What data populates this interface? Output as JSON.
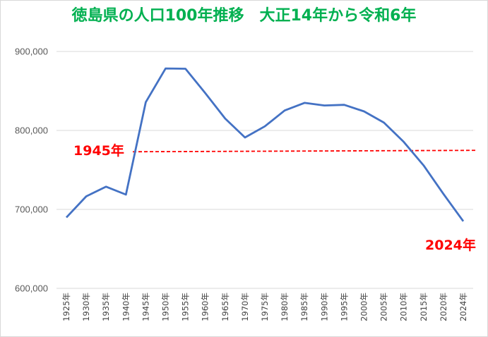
{
  "chart_data": {
    "type": "line",
    "title": "徳島県の人口100年推移　大正14年から令和6年",
    "title_color": "#00b050",
    "categories": [
      "1925年",
      "1930年",
      "1935年",
      "1940年",
      "1945年",
      "1950年",
      "1955年",
      "1960年",
      "1965年",
      "1970年",
      "1975年",
      "1980年",
      "1985年",
      "1990年",
      "1995年",
      "2000年",
      "2005年",
      "2010年",
      "2015年",
      "2020年",
      "2024年"
    ],
    "series": [
      {
        "color": "#4472c4",
        "values": [
          689814,
          716475,
          728748,
          718717,
          835763,
          878511,
          878109,
          847274,
          815115,
          791111,
          805166,
          825261,
          834889,
          831598,
          832427,
          824108,
          809950,
          785491,
          755733,
          719559,
          684996
        ]
      }
    ],
    "ylim": [
      600000,
      900000
    ],
    "yticks": [
      600000,
      700000,
      800000,
      900000
    ],
    "ytick_labels": [
      "600,000",
      "700,000",
      "800,000",
      "900,000"
    ],
    "gridlines": true,
    "reference_line": {
      "value": 773000,
      "color": "#ff0000",
      "style": "dashed"
    },
    "annotations": [
      {
        "text": "1945年",
        "color": "#ff0000"
      },
      {
        "text": "2024年",
        "color": "#ff0000"
      }
    ],
    "line_color": "#4472c4",
    "grid_color": "#d9d9d9"
  }
}
